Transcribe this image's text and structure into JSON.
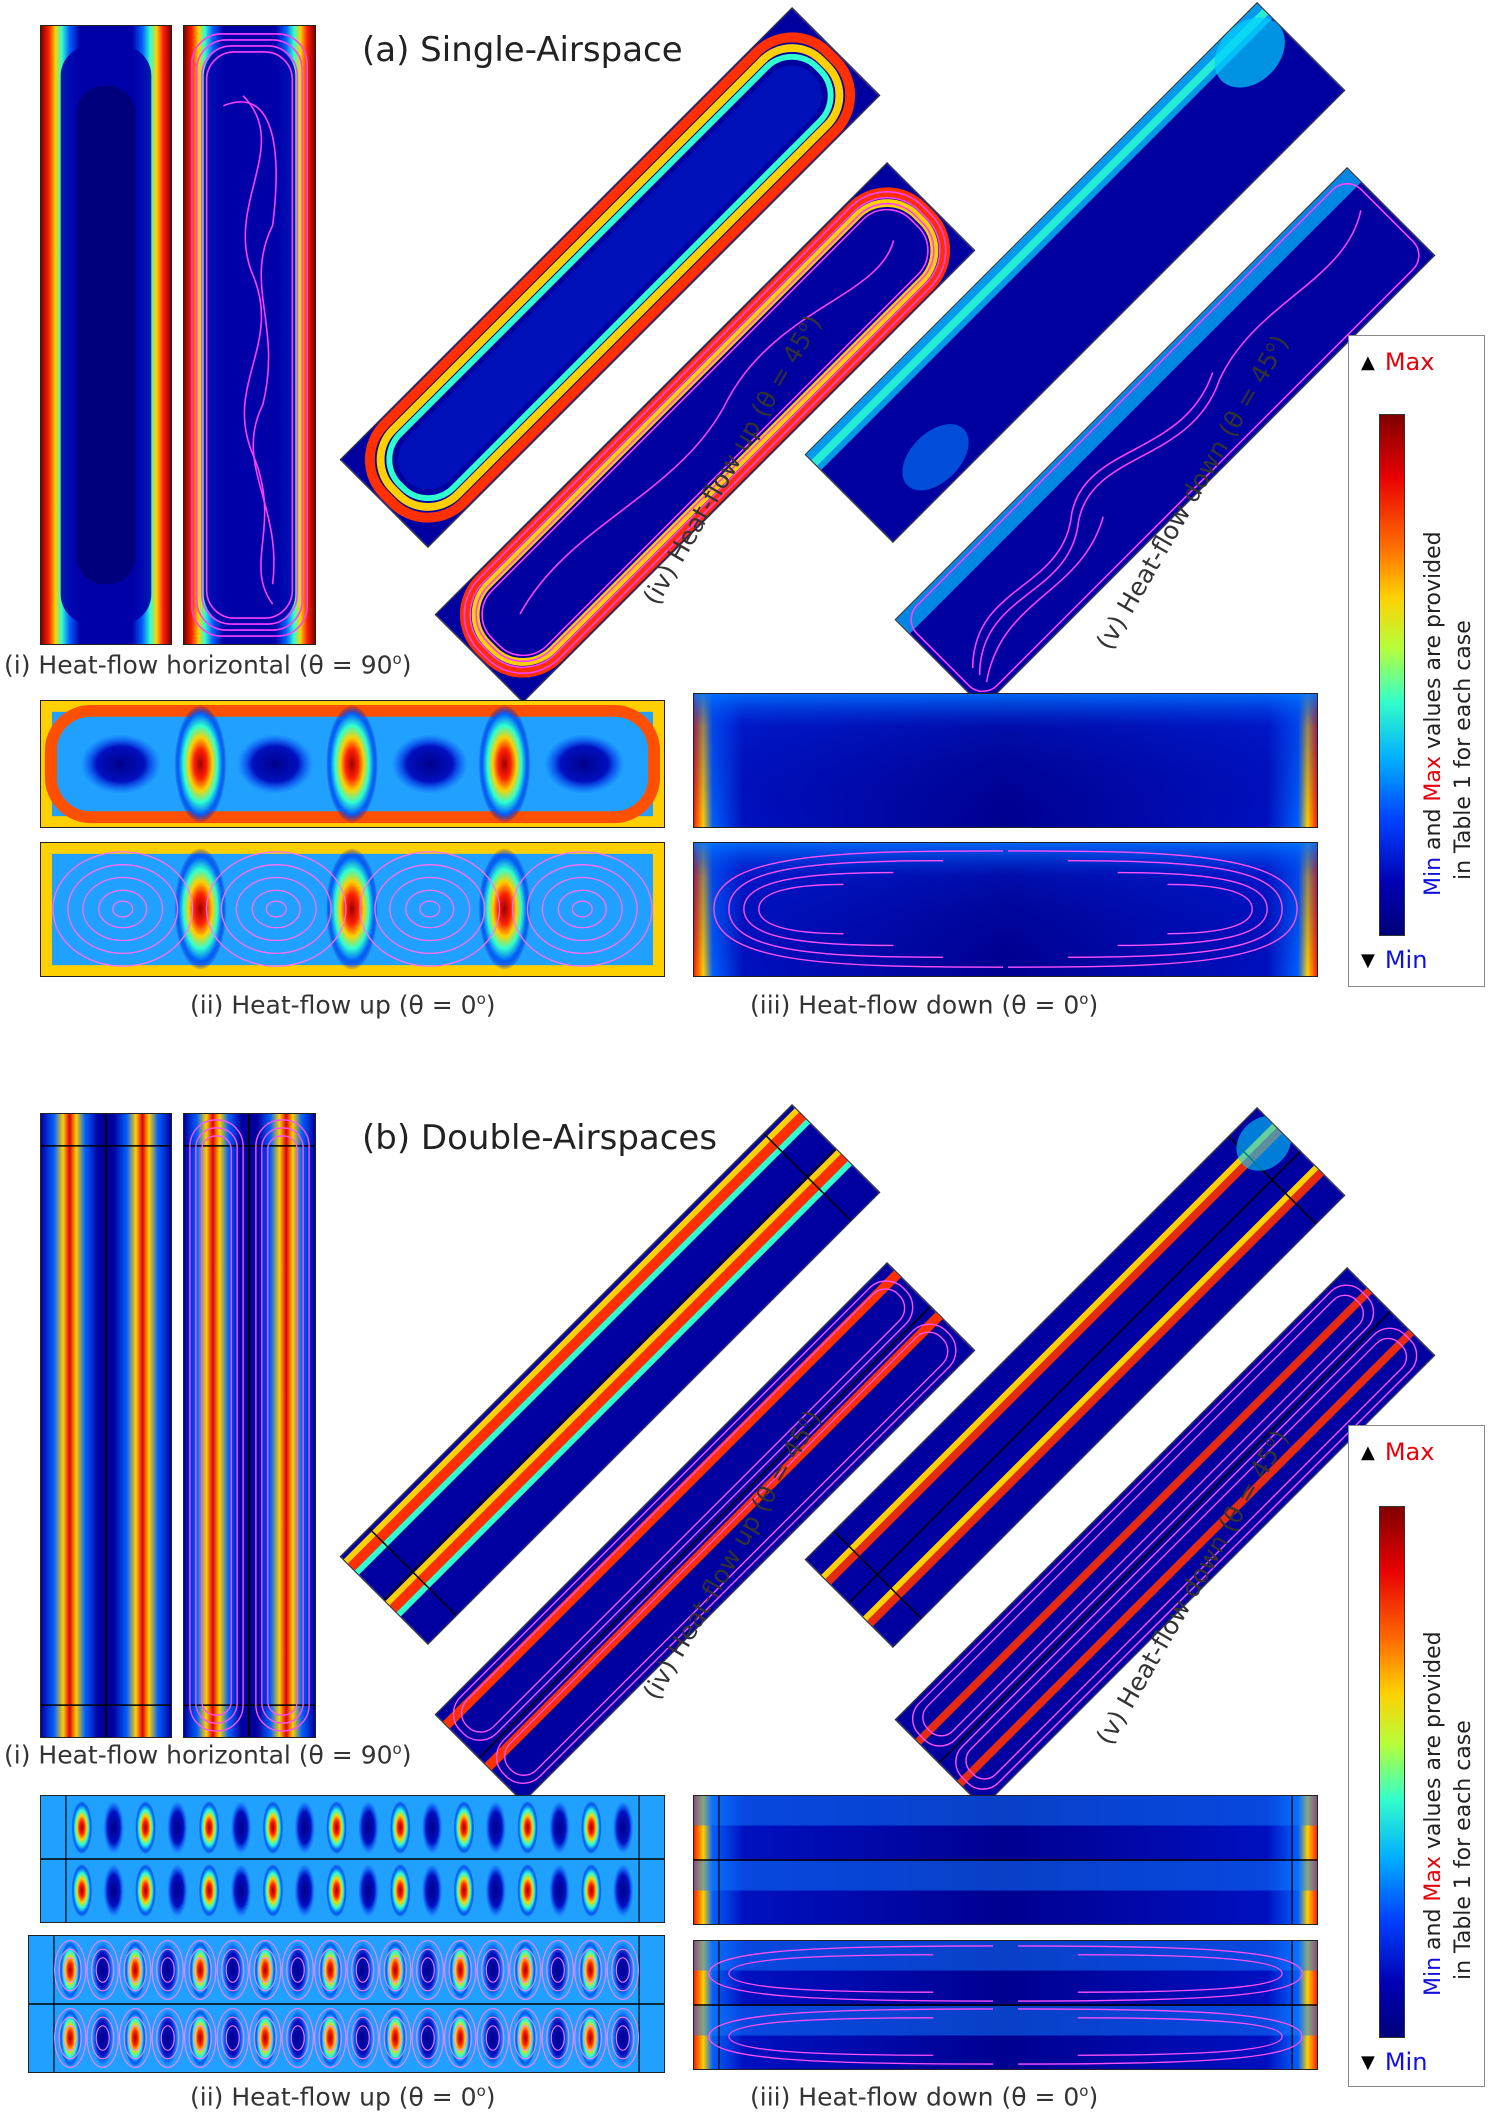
{
  "section_a": {
    "title": "(a) Single-Airspace",
    "label_i": "(i) Heat-flow horizontal (θ = 90",
    "label_i_sup": "o",
    "label_ii": "(ii) Heat-flow up (θ = 0",
    "label_ii_sup": "o",
    "label_iii": "(iii) Heat-flow down (θ = 0",
    "label_iii_sup": "o",
    "label_iv": "(iv) Heat-flow up (θ = 45",
    "label_iv_sup": "o",
    "label_v": "(v) Heat-flow down (θ = 45",
    "label_v_sup": "o"
  },
  "section_b": {
    "title": "(b) Double-Airspaces",
    "label_i": "(i) Heat-flow horizontal (θ = 90",
    "label_i_sup": "o",
    "label_ii": "(ii) Heat-flow up (θ = 0",
    "label_ii_sup": "o",
    "label_iii": "(iii) Heat-flow down (θ = 0",
    "label_iii_sup": "o",
    "label_iv": "(iv) Heat-flow up (θ = 45",
    "label_iv_sup": "o",
    "label_v": "(v) Heat-flow down (θ = 45",
    "label_v_sup": "o"
  },
  "legend": {
    "max": "Max",
    "min": "Min",
    "note_min": "Min",
    "note_and": " and ",
    "note_max": "Max",
    "note_rest1": " values are provided",
    "note_line2": "in Table 1 for each case"
  },
  "colors": {
    "max_text": "#e8000a",
    "min_text": "#1010e0",
    "field_low": "#00007a",
    "field_high": "#c00000",
    "streamline": "#ff40ff"
  }
}
